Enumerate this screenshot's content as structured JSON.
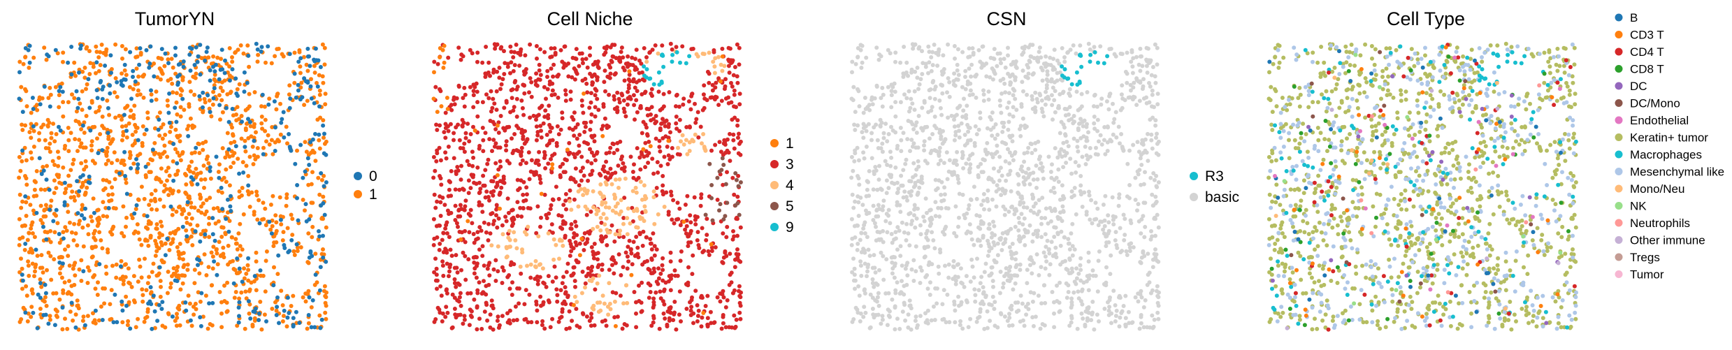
{
  "chart_data": [
    {
      "type": "scatter",
      "title": "TumorYN",
      "legend_position": "right",
      "grid": false,
      "axes_visible": false,
      "legend": [
        {
          "label": "0",
          "color": "#1f77b4"
        },
        {
          "label": "1",
          "color": "#ff7f0e"
        }
      ],
      "series": [
        {
          "name": "0",
          "color": "#1f77b4",
          "approx_share": 0.17
        },
        {
          "name": "1",
          "color": "#ff7f0e",
          "approx_share": 0.83
        }
      ]
    },
    {
      "type": "scatter",
      "title": "Cell Niche",
      "legend_position": "right",
      "grid": false,
      "axes_visible": false,
      "legend": [
        {
          "label": "1",
          "color": "#ff7f0e"
        },
        {
          "label": "3",
          "color": "#d62728"
        },
        {
          "label": "4",
          "color": "#ffbb78"
        },
        {
          "label": "5",
          "color": "#8c564b"
        },
        {
          "label": "9",
          "color": "#17becf"
        }
      ],
      "series": [
        {
          "name": "1",
          "color": "#ff7f0e",
          "approx_share": 0.04
        },
        {
          "name": "3",
          "color": "#d62728",
          "approx_share": 0.72
        },
        {
          "name": "4",
          "color": "#ffbb78",
          "approx_share": 0.19
        },
        {
          "name": "5",
          "color": "#8c564b",
          "approx_share": 0.02
        },
        {
          "name": "9",
          "color": "#17becf",
          "approx_share": 0.03
        }
      ]
    },
    {
      "type": "scatter",
      "title": "CSN",
      "legend_position": "right",
      "grid": false,
      "axes_visible": false,
      "legend": [
        {
          "label": "R3",
          "color": "#17becf"
        },
        {
          "label": "basic",
          "color": "#d3d3d3"
        }
      ],
      "series": [
        {
          "name": "R3",
          "color": "#17becf",
          "approx_share": 0.03
        },
        {
          "name": "basic",
          "color": "#d3d3d3",
          "approx_share": 0.97
        }
      ]
    },
    {
      "type": "scatter",
      "title": "Cell Type",
      "legend_position": "right",
      "grid": false,
      "axes_visible": false,
      "legend": [
        {
          "label": "B",
          "color": "#1f77b4"
        },
        {
          "label": "CD3 T",
          "color": "#ff7f0e"
        },
        {
          "label": "CD4 T",
          "color": "#d62728"
        },
        {
          "label": "CD8 T",
          "color": "#2ca02c"
        },
        {
          "label": "DC",
          "color": "#9467bd"
        },
        {
          "label": "DC/Mono",
          "color": "#8c564b"
        },
        {
          "label": "Endothelial",
          "color": "#e377c2"
        },
        {
          "label": "Keratin+ tumor",
          "color": "#b5bd61"
        },
        {
          "label": "Macrophages",
          "color": "#17becf"
        },
        {
          "label": "Mesenchymal like",
          "color": "#aec7e8"
        },
        {
          "label": "Mono/Neu",
          "color": "#ffbb78"
        },
        {
          "label": "NK",
          "color": "#98df8a"
        },
        {
          "label": "Neutrophils",
          "color": "#ff9896"
        },
        {
          "label": "Other immune",
          "color": "#c5b0d5"
        },
        {
          "label": "Tregs",
          "color": "#c49c94"
        },
        {
          "label": "Tumor",
          "color": "#f7b6d2"
        }
      ],
      "series": [
        {
          "name": "Keratin+ tumor",
          "color": "#b5bd61",
          "approx_share": 0.58
        },
        {
          "name": "Mesenchymal like",
          "color": "#aec7e8",
          "approx_share": 0.25
        },
        {
          "name": "Macrophages",
          "color": "#17becf",
          "approx_share": 0.05
        },
        {
          "name": "CD4 T",
          "color": "#d62728",
          "approx_share": 0.02
        },
        {
          "name": "CD3 T",
          "color": "#ff7f0e",
          "approx_share": 0.02
        },
        {
          "name": "CD8 T",
          "color": "#2ca02c",
          "approx_share": 0.02
        },
        {
          "name": "B",
          "color": "#1f77b4",
          "approx_share": 0.01
        },
        {
          "name": "DC",
          "color": "#9467bd",
          "approx_share": 0.01
        },
        {
          "name": "DC/Mono",
          "color": "#8c564b",
          "approx_share": 0.01
        },
        {
          "name": "Endothelial",
          "color": "#e377c2",
          "approx_share": 0.01
        },
        {
          "name": "Mono/Neu",
          "color": "#ffbb78",
          "approx_share": 0.005
        },
        {
          "name": "NK",
          "color": "#98df8a",
          "approx_share": 0.005
        },
        {
          "name": "Neutrophils",
          "color": "#ff9896",
          "approx_share": 0.005
        },
        {
          "name": "Other immune",
          "color": "#c5b0d5",
          "approx_share": 0.005
        },
        {
          "name": "Tregs",
          "color": "#c49c94",
          "approx_share": 0.005
        },
        {
          "name": "Tumor",
          "color": "#f7b6d2",
          "approx_share": 0.005
        }
      ]
    }
  ]
}
